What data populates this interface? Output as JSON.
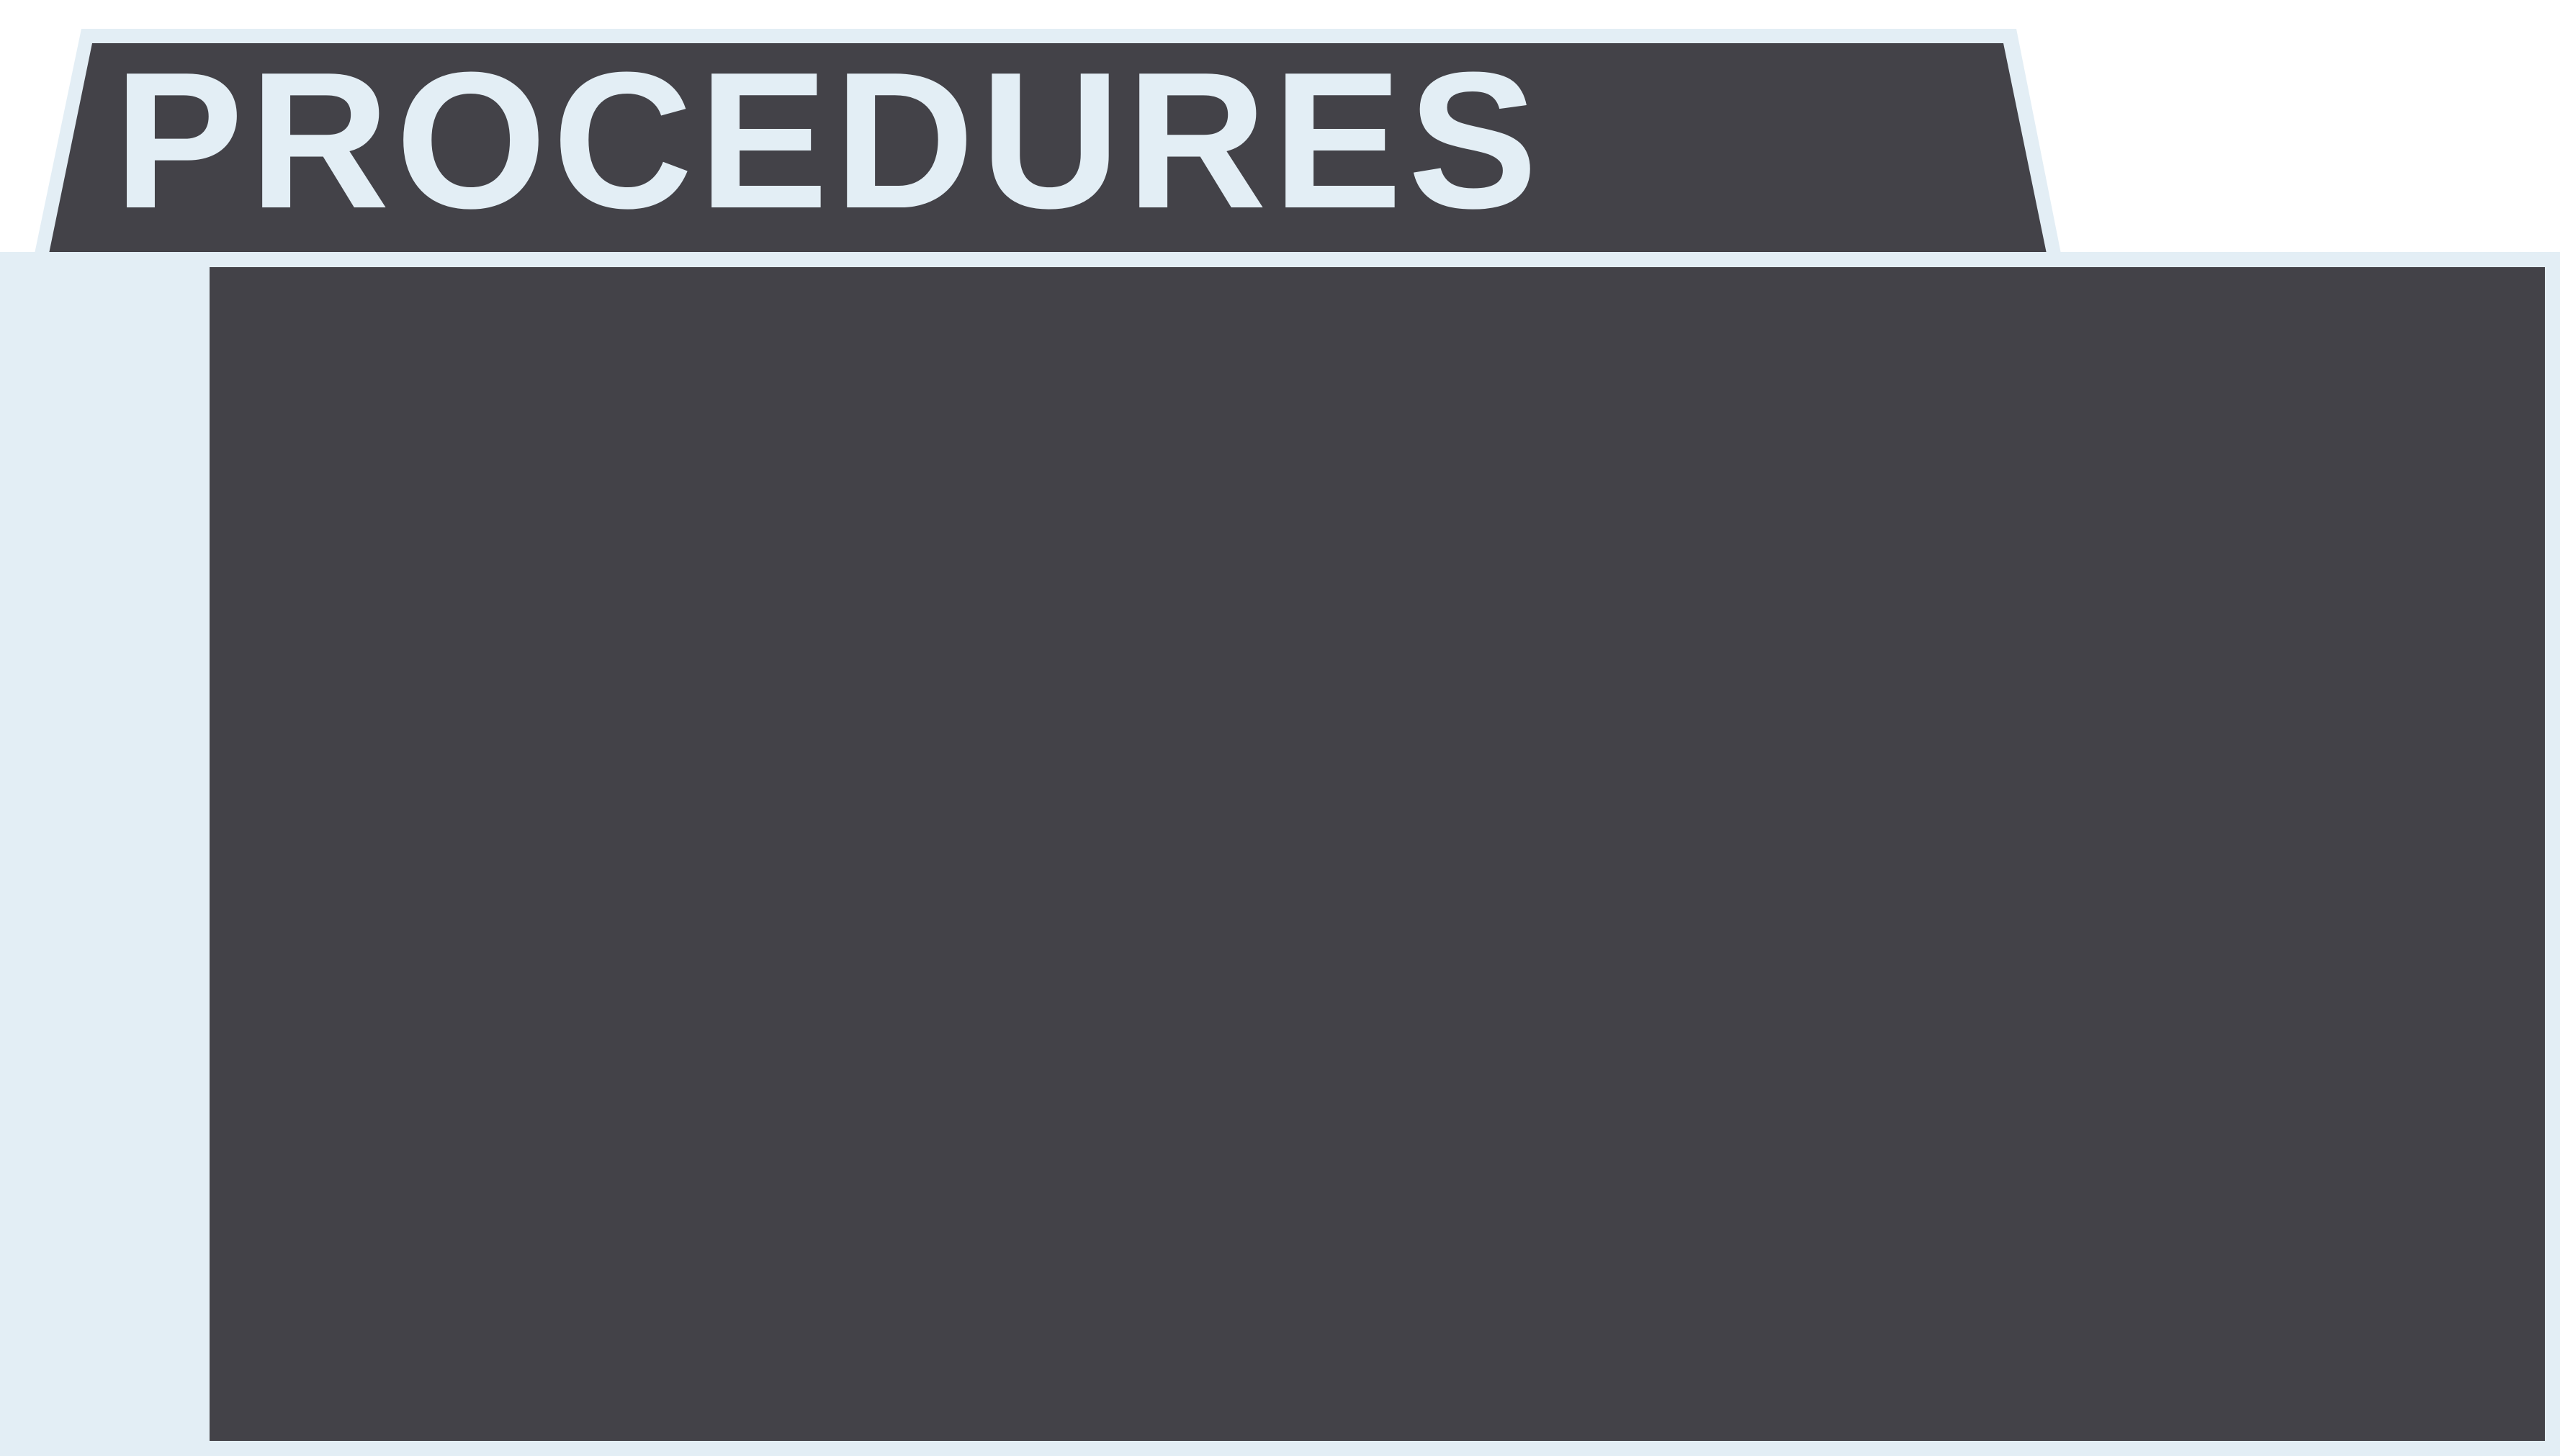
{
  "tab": {
    "title": "PROCEDURES"
  },
  "colors": {
    "folder_light": "#e3eef5",
    "folder_dark": "#434248",
    "background": "#ffffff"
  }
}
